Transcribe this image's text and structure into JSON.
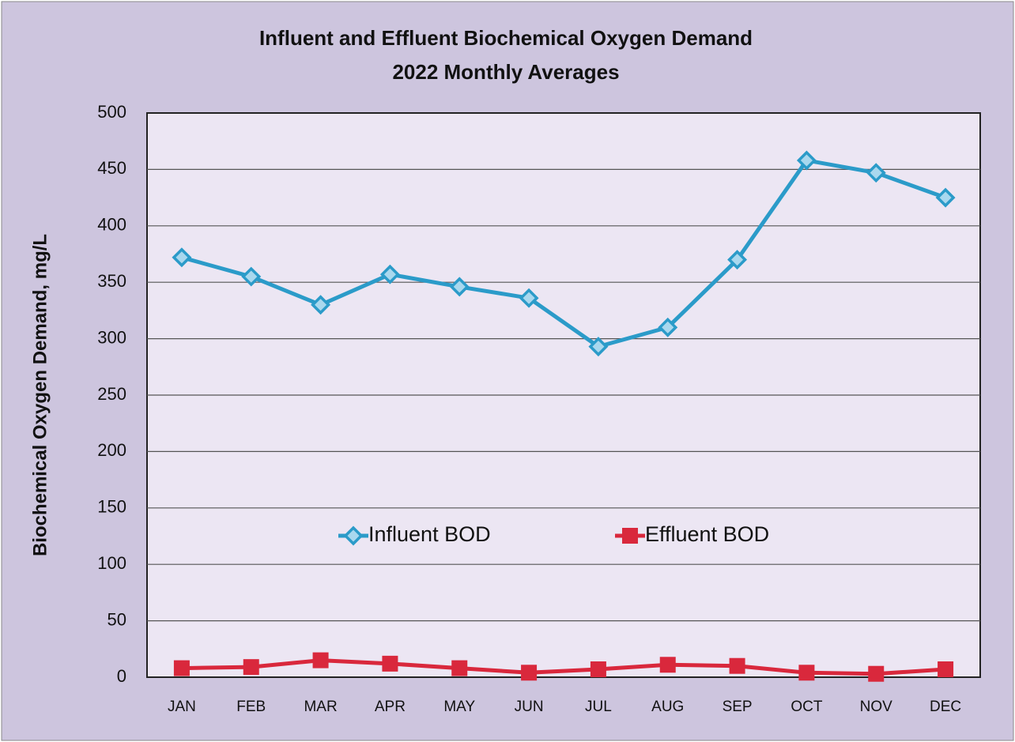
{
  "chart_data": {
    "type": "line",
    "title": "Influent and Effluent Biochemical Oxygen Demand",
    "subtitle": "2022 Monthly Averages",
    "y_label": "Biochemical Oxygen Demand, mg/L",
    "categories": [
      "JAN",
      "FEB",
      "MAR",
      "APR",
      "MAY",
      "JUN",
      "JUL",
      "AUG",
      "SEP",
      "OCT",
      "NOV",
      "DEC"
    ],
    "series": [
      {
        "name": "Influent BOD",
        "color": "#2b9bc9",
        "marker": "diamond",
        "values": [
          372,
          355,
          330,
          357,
          346,
          336,
          293,
          310,
          370,
          458,
          447,
          425
        ]
      },
      {
        "name": "Effluent BOD",
        "color": "#d9283c",
        "marker": "square",
        "values": [
          8,
          9,
          15,
          12,
          8,
          4,
          7,
          11,
          10,
          4,
          3,
          7
        ]
      }
    ],
    "ylim": [
      0,
      500
    ],
    "yticks": [
      0,
      50,
      100,
      150,
      200,
      250,
      300,
      350,
      400,
      450,
      500
    ],
    "grid": true,
    "legend": "center"
  }
}
